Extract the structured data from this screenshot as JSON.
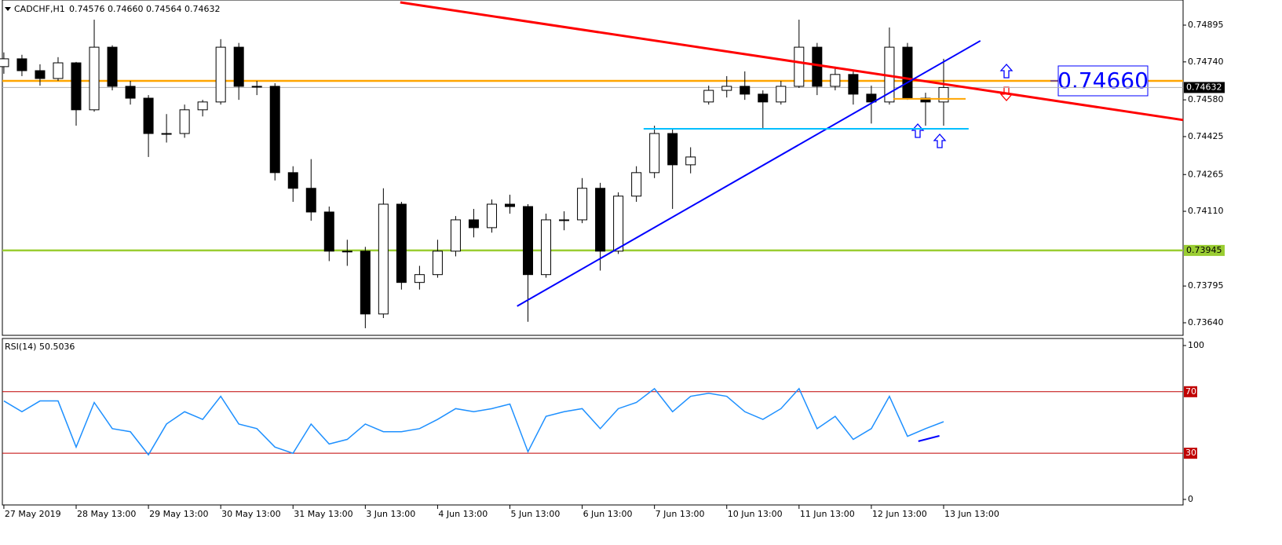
{
  "chart_data": [
    {
      "type": "candlestick",
      "title": "CADCHF,H1",
      "quote": "0.74576 0.74660 0.74564 0.74632",
      "x": [
        0,
        6,
        12,
        18,
        24,
        30,
        36,
        42,
        48,
        54,
        60,
        66,
        72,
        78,
        84,
        90,
        96,
        102,
        108,
        114,
        120,
        126,
        132,
        138,
        144,
        150,
        156,
        162,
        168,
        174,
        180,
        186,
        192,
        198,
        204,
        210,
        216,
        222,
        228,
        234,
        240,
        246,
        252,
        258,
        264,
        270,
        276,
        282,
        288,
        294,
        300,
        306,
        312
      ],
      "open": [
        0.7472,
        0.74753,
        0.74703,
        0.7467,
        0.74736,
        0.74538,
        0.74802,
        0.74637,
        0.74587,
        0.74438,
        0.74438,
        0.74538,
        0.74571,
        0.74802,
        0.74637,
        0.74637,
        0.74273,
        0.74207,
        0.74107,
        0.73942,
        0.73942,
        0.73677,
        0.7414,
        0.7381,
        0.73843,
        0.73942,
        0.74074,
        0.74041,
        0.7414,
        0.7413,
        0.73843,
        0.74074,
        0.74074,
        0.74207,
        0.73942,
        0.74174,
        0.74273,
        0.74438,
        0.74306,
        0.74571,
        0.7462,
        0.74637,
        0.74604,
        0.74571,
        0.74637,
        0.74802,
        0.74637,
        0.74687,
        0.74604,
        0.74571,
        0.74802,
        0.74587,
        0.74571
      ],
      "high": [
        0.7478,
        0.7477,
        0.7473,
        0.7476,
        0.7474,
        0.74918,
        0.7481,
        0.7466,
        0.746,
        0.7452,
        0.7456,
        0.7458,
        0.74836,
        0.7482,
        0.7466,
        0.7465,
        0.743,
        0.7433,
        0.7413,
        0.7399,
        0.7396,
        0.74207,
        0.7415,
        0.7388,
        0.7399,
        0.7409,
        0.7412,
        0.7416,
        0.7418,
        0.7414,
        0.741,
        0.7411,
        0.7425,
        0.7423,
        0.7419,
        0.743,
        0.74471,
        0.7446,
        0.7438,
        0.7464,
        0.7468,
        0.747,
        0.7462,
        0.7466,
        0.74918,
        0.7482,
        0.7472,
        0.747,
        0.7464,
        0.74885,
        0.7482,
        0.7461,
        0.74753
      ],
      "low": [
        0.7469,
        0.7468,
        0.7464,
        0.7466,
        0.74471,
        0.7453,
        0.7462,
        0.7456,
        0.74339,
        0.744,
        0.7442,
        0.7451,
        0.7456,
        0.7458,
        0.746,
        0.7424,
        0.7415,
        0.7407,
        0.739,
        0.7388,
        0.73617,
        0.7366,
        0.7378,
        0.7378,
        0.7383,
        0.7392,
        0.74,
        0.7402,
        0.741,
        0.73644,
        0.7383,
        0.7403,
        0.7406,
        0.7386,
        0.7393,
        0.7415,
        0.7425,
        0.7412,
        0.7427,
        0.7456,
        0.7459,
        0.7458,
        0.7446,
        0.7456,
        0.7463,
        0.746,
        0.7462,
        0.7456,
        0.7448,
        0.7456,
        0.7458,
        0.74471,
        0.74471
      ],
      "close": [
        0.74753,
        0.74703,
        0.7467,
        0.74736,
        0.74538,
        0.74802,
        0.74637,
        0.74587,
        0.74438,
        0.74438,
        0.74538,
        0.74571,
        0.74802,
        0.74637,
        0.74637,
        0.74273,
        0.74207,
        0.74107,
        0.73942,
        0.73942,
        0.73677,
        0.7414,
        0.7381,
        0.73843,
        0.73942,
        0.74074,
        0.74041,
        0.7414,
        0.7413,
        0.73843,
        0.74074,
        0.74074,
        0.74207,
        0.73942,
        0.74174,
        0.74273,
        0.74438,
        0.74306,
        0.74339,
        0.7462,
        0.74637,
        0.74604,
        0.74571,
        0.74637,
        0.74802,
        0.74637,
        0.74687,
        0.74604,
        0.74571,
        0.74802,
        0.74587,
        0.74571,
        0.74632
      ],
      "xlim": [
        -0.5,
        391.5
      ],
      "ylim": [
        0.73587,
        0.75001
      ],
      "yticks": [
        0.74895,
        {
          "value": 0.7474,
          "label": "0.74740"
        },
        {
          "value": 0.7458,
          "label": "0.74580"
        },
        0.74425,
        0.74265,
        {
          "value": 0.7411,
          "label": "0.74110"
        },
        0.73795,
        {
          "value": 0.7364,
          "label": "0.73640"
        }
      ],
      "xticks": [
        {
          "value": 0,
          "label": "27 May 2019"
        },
        {
          "value": 24,
          "label": "28 May 13:00"
        },
        {
          "value": 48,
          "label": "29 May 13:00"
        },
        {
          "value": 72,
          "label": "30 May 13:00"
        },
        {
          "value": 96,
          "label": "31 May 13:00"
        },
        {
          "value": 120,
          "label": "3 Jun 13:00"
        },
        {
          "value": 144,
          "label": "4 Jun 13:00"
        },
        {
          "value": 168,
          "label": "5 Jun 13:00"
        },
        {
          "value": 192,
          "label": "6 Jun 13:00"
        },
        {
          "value": 216,
          "label": "7 Jun 13:00"
        },
        {
          "value": 240,
          "label": "10 Jun 13:00"
        },
        {
          "value": 264,
          "label": "11 Jun 13:00"
        },
        {
          "value": 288,
          "label": "12 Jun 13:00"
        },
        {
          "value": 312,
          "label": "13 Jun 13:00"
        }
      ],
      "hlines": [
        {
          "value": 0.7466,
          "color": "#ffa500",
          "label": "0.74660",
          "label_style": "box"
        },
        {
          "value": 0.73945,
          "color": "#9acd32",
          "label": "0.73945",
          "label_style": "axis"
        },
        {
          "value": 0.74632,
          "color": "#b0b0b0",
          "label": "0.74632",
          "label_style": "price"
        }
      ],
      "trendlines": [
        {
          "color": "#ff0000",
          "x": [
            131.6,
            391.5
          ],
          "values": [
            0.74991,
            0.74495
          ]
        },
        {
          "color": "#0000ff",
          "x": [
            170.4,
            324.2
          ],
          "values": [
            0.7371,
            0.74829
          ]
        },
        {
          "color": "#00bfff",
          "x": [
            212.4,
            320.3
          ],
          "values": [
            0.74458,
            0.74458
          ]
        },
        {
          "color": "#ffa500",
          "x": [
            295.3,
            319.3
          ],
          "values": [
            0.74584,
            0.74584
          ]
        }
      ]
    },
    {
      "type": "line",
      "title": "RSI(14) 50.5036",
      "color": "#1e90ff",
      "x": [
        0,
        6,
        12,
        18,
        24,
        30,
        36,
        42,
        48,
        54,
        60,
        66,
        72,
        78,
        84,
        90,
        96,
        102,
        108,
        114,
        120,
        126,
        132,
        138,
        144,
        150,
        156,
        162,
        168,
        174,
        180,
        186,
        192,
        198,
        204,
        210,
        216,
        222,
        228,
        234,
        240,
        246,
        252,
        258,
        264,
        270,
        276,
        282,
        288,
        294,
        300,
        306,
        312
      ],
      "values": [
        64,
        57,
        64,
        64,
        34,
        63,
        46,
        44,
        29,
        49,
        57,
        52,
        67,
        49,
        46,
        34,
        30,
        49,
        36,
        39,
        49,
        44,
        44,
        46,
        52,
        59,
        57,
        59,
        62,
        31,
        54,
        57,
        59,
        46,
        59,
        63,
        72,
        57,
        67,
        69,
        67,
        57,
        52,
        59,
        72,
        46,
        54,
        39,
        46,
        67,
        41,
        46,
        50.5036
      ],
      "xlim": [
        -0.5,
        391.5
      ],
      "ylim": [
        -3.6,
        104.6
      ],
      "yticks": [
        100,
        0
      ],
      "levels": [
        70,
        30
      ],
      "level_color": "#c00000",
      "trendlines": [
        {
          "color": "#0000ff",
          "x": [
            303.6,
            310.6
          ],
          "values": [
            37.8,
            41.3
          ]
        }
      ]
    }
  ]
}
